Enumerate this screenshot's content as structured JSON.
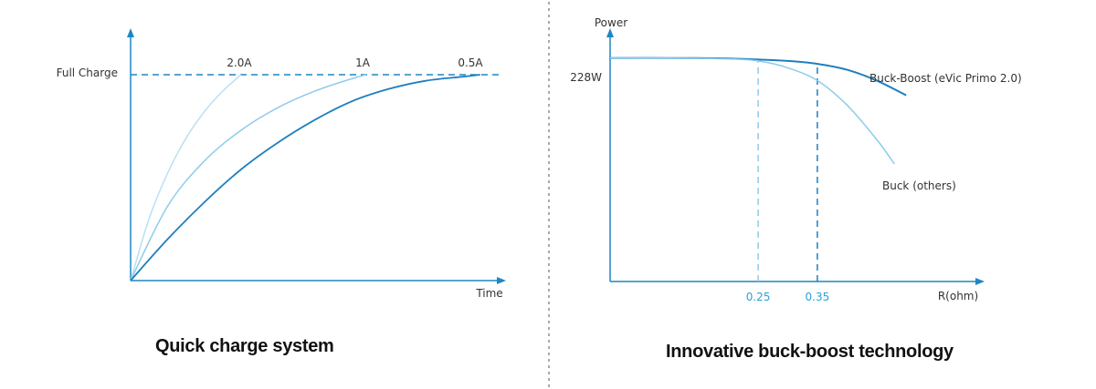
{
  "colors": {
    "axis": "#1f86c4",
    "dark_blue": "#1f7fbf",
    "mid_blue": "#8fcbeb",
    "light_blue": "#b8e0f4",
    "divider": "#555555"
  },
  "captions": {
    "left": "Quick charge system",
    "right": "Innovative buck-boost technology"
  },
  "chart_data": [
    {
      "type": "line",
      "title": "",
      "xlabel": "Time",
      "ylabel": "",
      "y_tick_label": "Full Charge",
      "y_range": [
        0,
        1
      ],
      "x_range": [
        0,
        1
      ],
      "reference_line": {
        "y": 1,
        "style": "dashed",
        "label": "Full Charge"
      },
      "series": [
        {
          "name": "2.0A",
          "color": "#b8e0f4",
          "x": [
            0,
            0.05,
            0.1,
            0.15,
            0.2,
            0.25,
            0.3
          ],
          "y": [
            0,
            0.3,
            0.52,
            0.69,
            0.82,
            0.92,
            1.0
          ]
        },
        {
          "name": "1A",
          "color": "#8fcbeb",
          "x": [
            0,
            0.1,
            0.2,
            0.3,
            0.4,
            0.5,
            0.6,
            0.64
          ],
          "y": [
            0,
            0.36,
            0.58,
            0.73,
            0.84,
            0.92,
            0.98,
            1.0
          ]
        },
        {
          "name": "0.5A",
          "color": "#1f7fbf",
          "x": [
            0,
            0.1,
            0.2,
            0.3,
            0.4,
            0.5,
            0.6,
            0.7,
            0.8,
            0.9,
            0.95
          ],
          "y": [
            0,
            0.2,
            0.38,
            0.54,
            0.67,
            0.78,
            0.87,
            0.93,
            0.97,
            0.99,
            1.0
          ]
        }
      ],
      "grid": false,
      "legend": "none"
    },
    {
      "type": "line",
      "title": "",
      "xlabel": "R(ohm)",
      "ylabel": "Power",
      "y_tick_label": "228W",
      "x_range": [
        0,
        0.62
      ],
      "y_range": [
        0,
        250
      ],
      "y_tick_value": 228,
      "x_ticks": [
        0.25,
        0.35
      ],
      "x_tick_labels": [
        "0.25",
        "0.35"
      ],
      "series": [
        {
          "name": "Buck-Boost (eVic Primo 2.0)",
          "color": "#1f7fbf",
          "x": [
            0,
            0.1,
            0.2,
            0.3,
            0.35,
            0.4,
            0.45,
            0.5
          ],
          "y": [
            228,
            228,
            227.5,
            225,
            222,
            216,
            205,
            190
          ]
        },
        {
          "name": "Buck (others)",
          "color": "#8fcbeb",
          "x": [
            0,
            0.1,
            0.2,
            0.25,
            0.3,
            0.35,
            0.4,
            0.45,
            0.48
          ],
          "y": [
            228,
            228,
            227,
            225,
            218,
            205,
            180,
            145,
            120
          ]
        }
      ],
      "grid": false,
      "legend": "inline"
    }
  ]
}
